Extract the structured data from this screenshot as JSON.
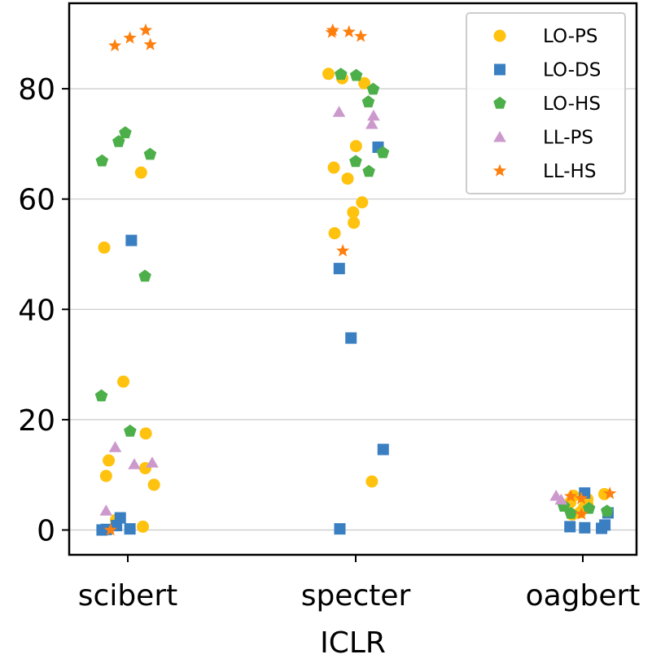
{
  "chart_data": {
    "type": "scatter",
    "xlabel": "ICLR",
    "ylabel": "",
    "categories": [
      "scibert",
      "specter",
      "oagbert"
    ],
    "ylim": [
      -4.5,
      95.5
    ],
    "yticks": [
      0,
      20,
      40,
      60,
      80
    ],
    "grid": "y",
    "legend_position": "top-right",
    "series": [
      {
        "name": "LO-PS",
        "marker": "circle",
        "color": "#FFC20E",
        "points": [
          {
            "x": 0,
            "y": 64.8
          },
          {
            "x": 0,
            "y": 51.2
          },
          {
            "x": 0,
            "y": 26.9
          },
          {
            "x": 0,
            "y": 17.5
          },
          {
            "x": 0,
            "y": 12.6
          },
          {
            "x": 0,
            "y": 11.2
          },
          {
            "x": 0,
            "y": 9.8
          },
          {
            "x": 0,
            "y": 8.2
          },
          {
            "x": 0,
            "y": 1.8
          },
          {
            "x": 0,
            "y": 0.6
          },
          {
            "x": 1,
            "y": 82.7
          },
          {
            "x": 1,
            "y": 81.9
          },
          {
            "x": 1,
            "y": 81.0
          },
          {
            "x": 1,
            "y": 69.6
          },
          {
            "x": 1,
            "y": 65.7
          },
          {
            "x": 1,
            "y": 63.7
          },
          {
            "x": 1,
            "y": 59.4
          },
          {
            "x": 1,
            "y": 57.6
          },
          {
            "x": 1,
            "y": 55.7
          },
          {
            "x": 1,
            "y": 53.8
          },
          {
            "x": 1,
            "y": 8.8
          },
          {
            "x": 2,
            "y": 6.5
          },
          {
            "x": 2,
            "y": 6.2
          },
          {
            "x": 2,
            "y": 6.0
          },
          {
            "x": 2,
            "y": 5.6
          },
          {
            "x": 2,
            "y": 5.0
          },
          {
            "x": 2,
            "y": 4.6
          },
          {
            "x": 2,
            "y": 4.1
          },
          {
            "x": 2,
            "y": 3.2
          },
          {
            "x": 2,
            "y": 2.8
          }
        ]
      },
      {
        "name": "LO-DS",
        "marker": "square",
        "color": "#3A7FC1",
        "points": [
          {
            "x": 0,
            "y": 52.5
          },
          {
            "x": 0,
            "y": 2.2
          },
          {
            "x": 0,
            "y": 0.8
          },
          {
            "x": 0,
            "y": 0.2
          },
          {
            "x": 0,
            "y": 0.1
          },
          {
            "x": 0,
            "y": 0.0
          },
          {
            "x": 1,
            "y": 69.4
          },
          {
            "x": 1,
            "y": 47.4
          },
          {
            "x": 1,
            "y": 34.8
          },
          {
            "x": 1,
            "y": 14.6
          },
          {
            "x": 1,
            "y": 0.2
          },
          {
            "x": 2,
            "y": 6.7
          },
          {
            "x": 2,
            "y": 3.1
          },
          {
            "x": 2,
            "y": 0.9
          },
          {
            "x": 2,
            "y": 0.6
          },
          {
            "x": 2,
            "y": 0.4
          },
          {
            "x": 2,
            "y": 0.3
          }
        ]
      },
      {
        "name": "LO-HS",
        "marker": "pentagon",
        "color": "#4DAF4A",
        "points": [
          {
            "x": 0,
            "y": 72.0
          },
          {
            "x": 0,
            "y": 70.4
          },
          {
            "x": 0,
            "y": 68.1
          },
          {
            "x": 0,
            "y": 66.9
          },
          {
            "x": 0,
            "y": 46.0
          },
          {
            "x": 0,
            "y": 24.3
          },
          {
            "x": 0,
            "y": 17.9
          },
          {
            "x": 1,
            "y": 82.6
          },
          {
            "x": 1,
            "y": 82.4
          },
          {
            "x": 1,
            "y": 79.9
          },
          {
            "x": 1,
            "y": 77.6
          },
          {
            "x": 1,
            "y": 68.4
          },
          {
            "x": 1,
            "y": 66.8
          },
          {
            "x": 1,
            "y": 65.0
          },
          {
            "x": 2,
            "y": 4.3
          },
          {
            "x": 2,
            "y": 3.9
          },
          {
            "x": 2,
            "y": 3.4
          },
          {
            "x": 2,
            "y": 3.0
          }
        ]
      },
      {
        "name": "LL-PS",
        "marker": "triangle",
        "color": "#CC99CC",
        "points": [
          {
            "x": 0,
            "y": 15.0
          },
          {
            "x": 0,
            "y": 12.2
          },
          {
            "x": 0,
            "y": 11.9
          },
          {
            "x": 0,
            "y": 3.5
          },
          {
            "x": 1,
            "y": 75.8
          },
          {
            "x": 1,
            "y": 75.1
          },
          {
            "x": 1,
            "y": 73.6
          },
          {
            "x": 2,
            "y": 6.2
          },
          {
            "x": 2,
            "y": 5.5
          }
        ]
      },
      {
        "name": "LL-HS",
        "marker": "star",
        "color": "#FF7F0E",
        "points": [
          {
            "x": 0,
            "y": 90.6
          },
          {
            "x": 0,
            "y": 89.2
          },
          {
            "x": 0,
            "y": 88.0
          },
          {
            "x": 0,
            "y": 87.8
          },
          {
            "x": 0,
            "y": 0.0
          },
          {
            "x": 1,
            "y": 90.6
          },
          {
            "x": 1,
            "y": 90.3
          },
          {
            "x": 1,
            "y": 90.2
          },
          {
            "x": 1,
            "y": 89.5
          },
          {
            "x": 1,
            "y": 50.6
          },
          {
            "x": 2,
            "y": 6.6
          },
          {
            "x": 2,
            "y": 6.1
          },
          {
            "x": 2,
            "y": 5.7
          },
          {
            "x": 2,
            "y": 2.9
          }
        ]
      }
    ]
  }
}
